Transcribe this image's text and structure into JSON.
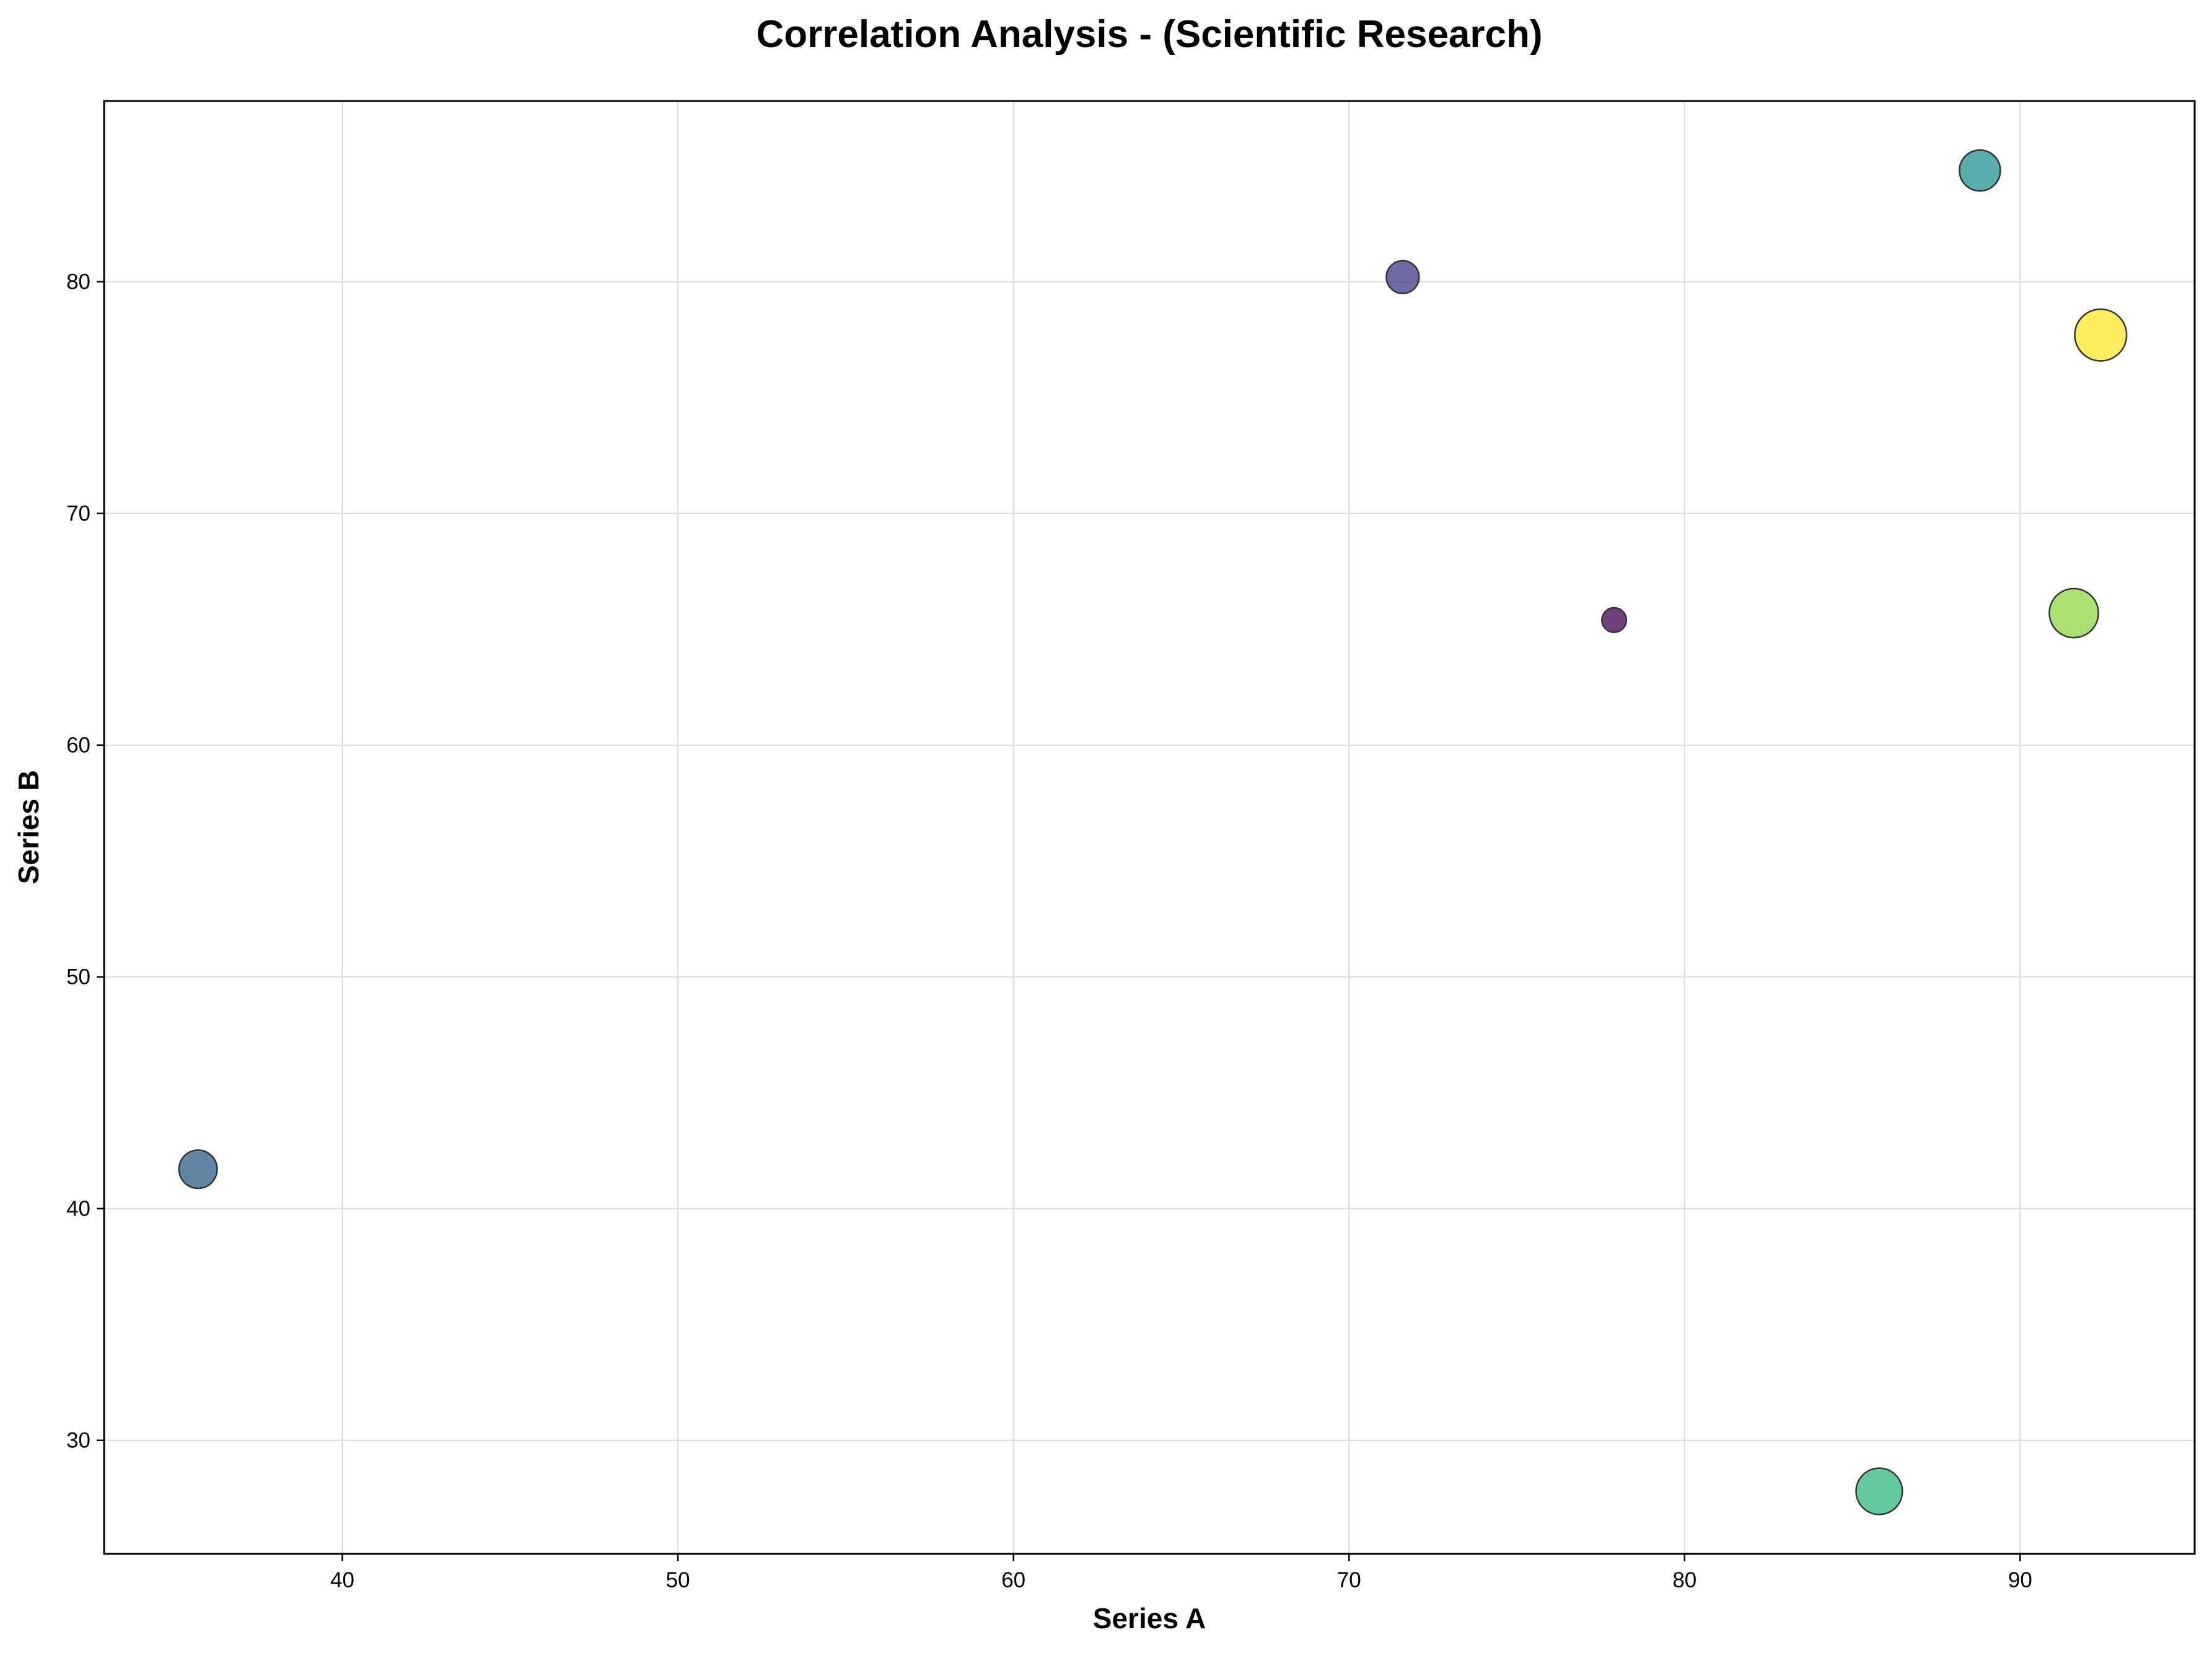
{
  "chart_data": {
    "type": "scatter",
    "title": "Correlation Analysis - (Scientific Research)",
    "xlabel": "Series A",
    "ylabel": "Series B",
    "xlim": [
      32.9,
      95.2
    ],
    "ylim": [
      25.1,
      87.8
    ],
    "xticks": [
      40,
      50,
      60,
      70,
      80,
      90
    ],
    "yticks": [
      30,
      40,
      50,
      60,
      70,
      80
    ],
    "grid": true,
    "colormap": "viridis",
    "points": [
      {
        "x": 77.9,
        "y": 65.4,
        "size": 9,
        "color": "#440154"
      },
      {
        "x": 71.6,
        "y": 80.2,
        "size": 12,
        "color": "#3e3a84"
      },
      {
        "x": 35.7,
        "y": 41.7,
        "size": 14,
        "color": "#2c5f85"
      },
      {
        "x": 88.8,
        "y": 84.8,
        "size": 15,
        "color": "#20908d"
      },
      {
        "x": 85.8,
        "y": 27.8,
        "size": 17,
        "color": "#2fb67a"
      },
      {
        "x": 91.6,
        "y": 65.7,
        "size": 18,
        "color": "#8fd744"
      },
      {
        "x": 92.4,
        "y": 77.7,
        "size": 19,
        "color": "#fde725"
      }
    ]
  }
}
